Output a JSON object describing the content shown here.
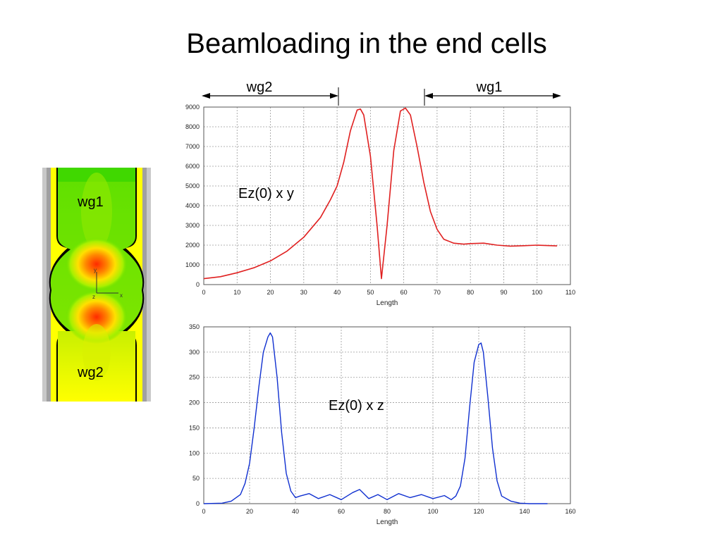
{
  "slide": {
    "title": "Beamloading in the end cells"
  },
  "field_map": {
    "top_label": "wg1",
    "bottom_label": "wg2",
    "axis_y": "y",
    "axis_z": "z",
    "axis_x": "x"
  },
  "arrows": {
    "left_label": "wg2",
    "right_label": "wg1"
  },
  "colors": {
    "series1": "#e02020",
    "series2": "#1030d0",
    "grid": "#9a9a9a"
  },
  "chart_data": [
    {
      "type": "line",
      "annotation": "Ez(0) x y",
      "xlabel": "Length",
      "ylabel": "",
      "xlim": [
        0,
        110
      ],
      "ylim": [
        0,
        9000
      ],
      "xticks": [
        0,
        10,
        20,
        30,
        40,
        50,
        60,
        70,
        80,
        90,
        100,
        110
      ],
      "yticks": [
        0,
        1000,
        2000,
        3000,
        4000,
        5000,
        6000,
        7000,
        8000,
        9000
      ],
      "grid": true,
      "series": [
        {
          "x": [
            0,
            5,
            10,
            15,
            20,
            25,
            30,
            35,
            38,
            40,
            42,
            44,
            46,
            47,
            48,
            50,
            52,
            53.3,
            55,
            57,
            59,
            60.5,
            62,
            64,
            66,
            68,
            70,
            72,
            75,
            78,
            80,
            84,
            88,
            92,
            96,
            100,
            103,
            106
          ],
          "y": [
            300,
            400,
            600,
            850,
            1200,
            1700,
            2400,
            3400,
            4300,
            5000,
            6200,
            7800,
            8850,
            8900,
            8600,
            6500,
            3000,
            300,
            3000,
            6800,
            8800,
            8950,
            8600,
            7000,
            5200,
            3700,
            2800,
            2300,
            2100,
            2050,
            2080,
            2100,
            2000,
            1950,
            1970,
            2000,
            1980,
            1960
          ]
        }
      ]
    },
    {
      "type": "line",
      "annotation": "Ez(0) x z",
      "xlabel": "Length",
      "ylabel": "",
      "xlim": [
        0,
        160
      ],
      "ylim": [
        0,
        350
      ],
      "xticks": [
        0,
        20,
        40,
        60,
        80,
        100,
        120,
        140,
        160
      ],
      "yticks": [
        0,
        50,
        100,
        150,
        200,
        250,
        300,
        350
      ],
      "grid": true,
      "series": [
        {
          "x": [
            0,
            8,
            12,
            16,
            18,
            20,
            22,
            24,
            26,
            28,
            29,
            30,
            32,
            34,
            36,
            38,
            40,
            42,
            46,
            50,
            55,
            60,
            65,
            68,
            72,
            76,
            80,
            85,
            90,
            95,
            100,
            105,
            108,
            110,
            112,
            114,
            116,
            118,
            120,
            121,
            122,
            124,
            126,
            128,
            130,
            134,
            138,
            142,
            146,
            150
          ],
          "y": [
            0,
            1,
            5,
            18,
            40,
            80,
            150,
            230,
            300,
            330,
            338,
            330,
            250,
            140,
            60,
            25,
            12,
            15,
            20,
            10,
            18,
            8,
            22,
            28,
            10,
            18,
            8,
            20,
            12,
            18,
            10,
            16,
            8,
            15,
            35,
            90,
            190,
            280,
            315,
            318,
            300,
            210,
            110,
            45,
            15,
            5,
            1,
            0,
            0,
            0
          ]
        }
      ]
    }
  ]
}
